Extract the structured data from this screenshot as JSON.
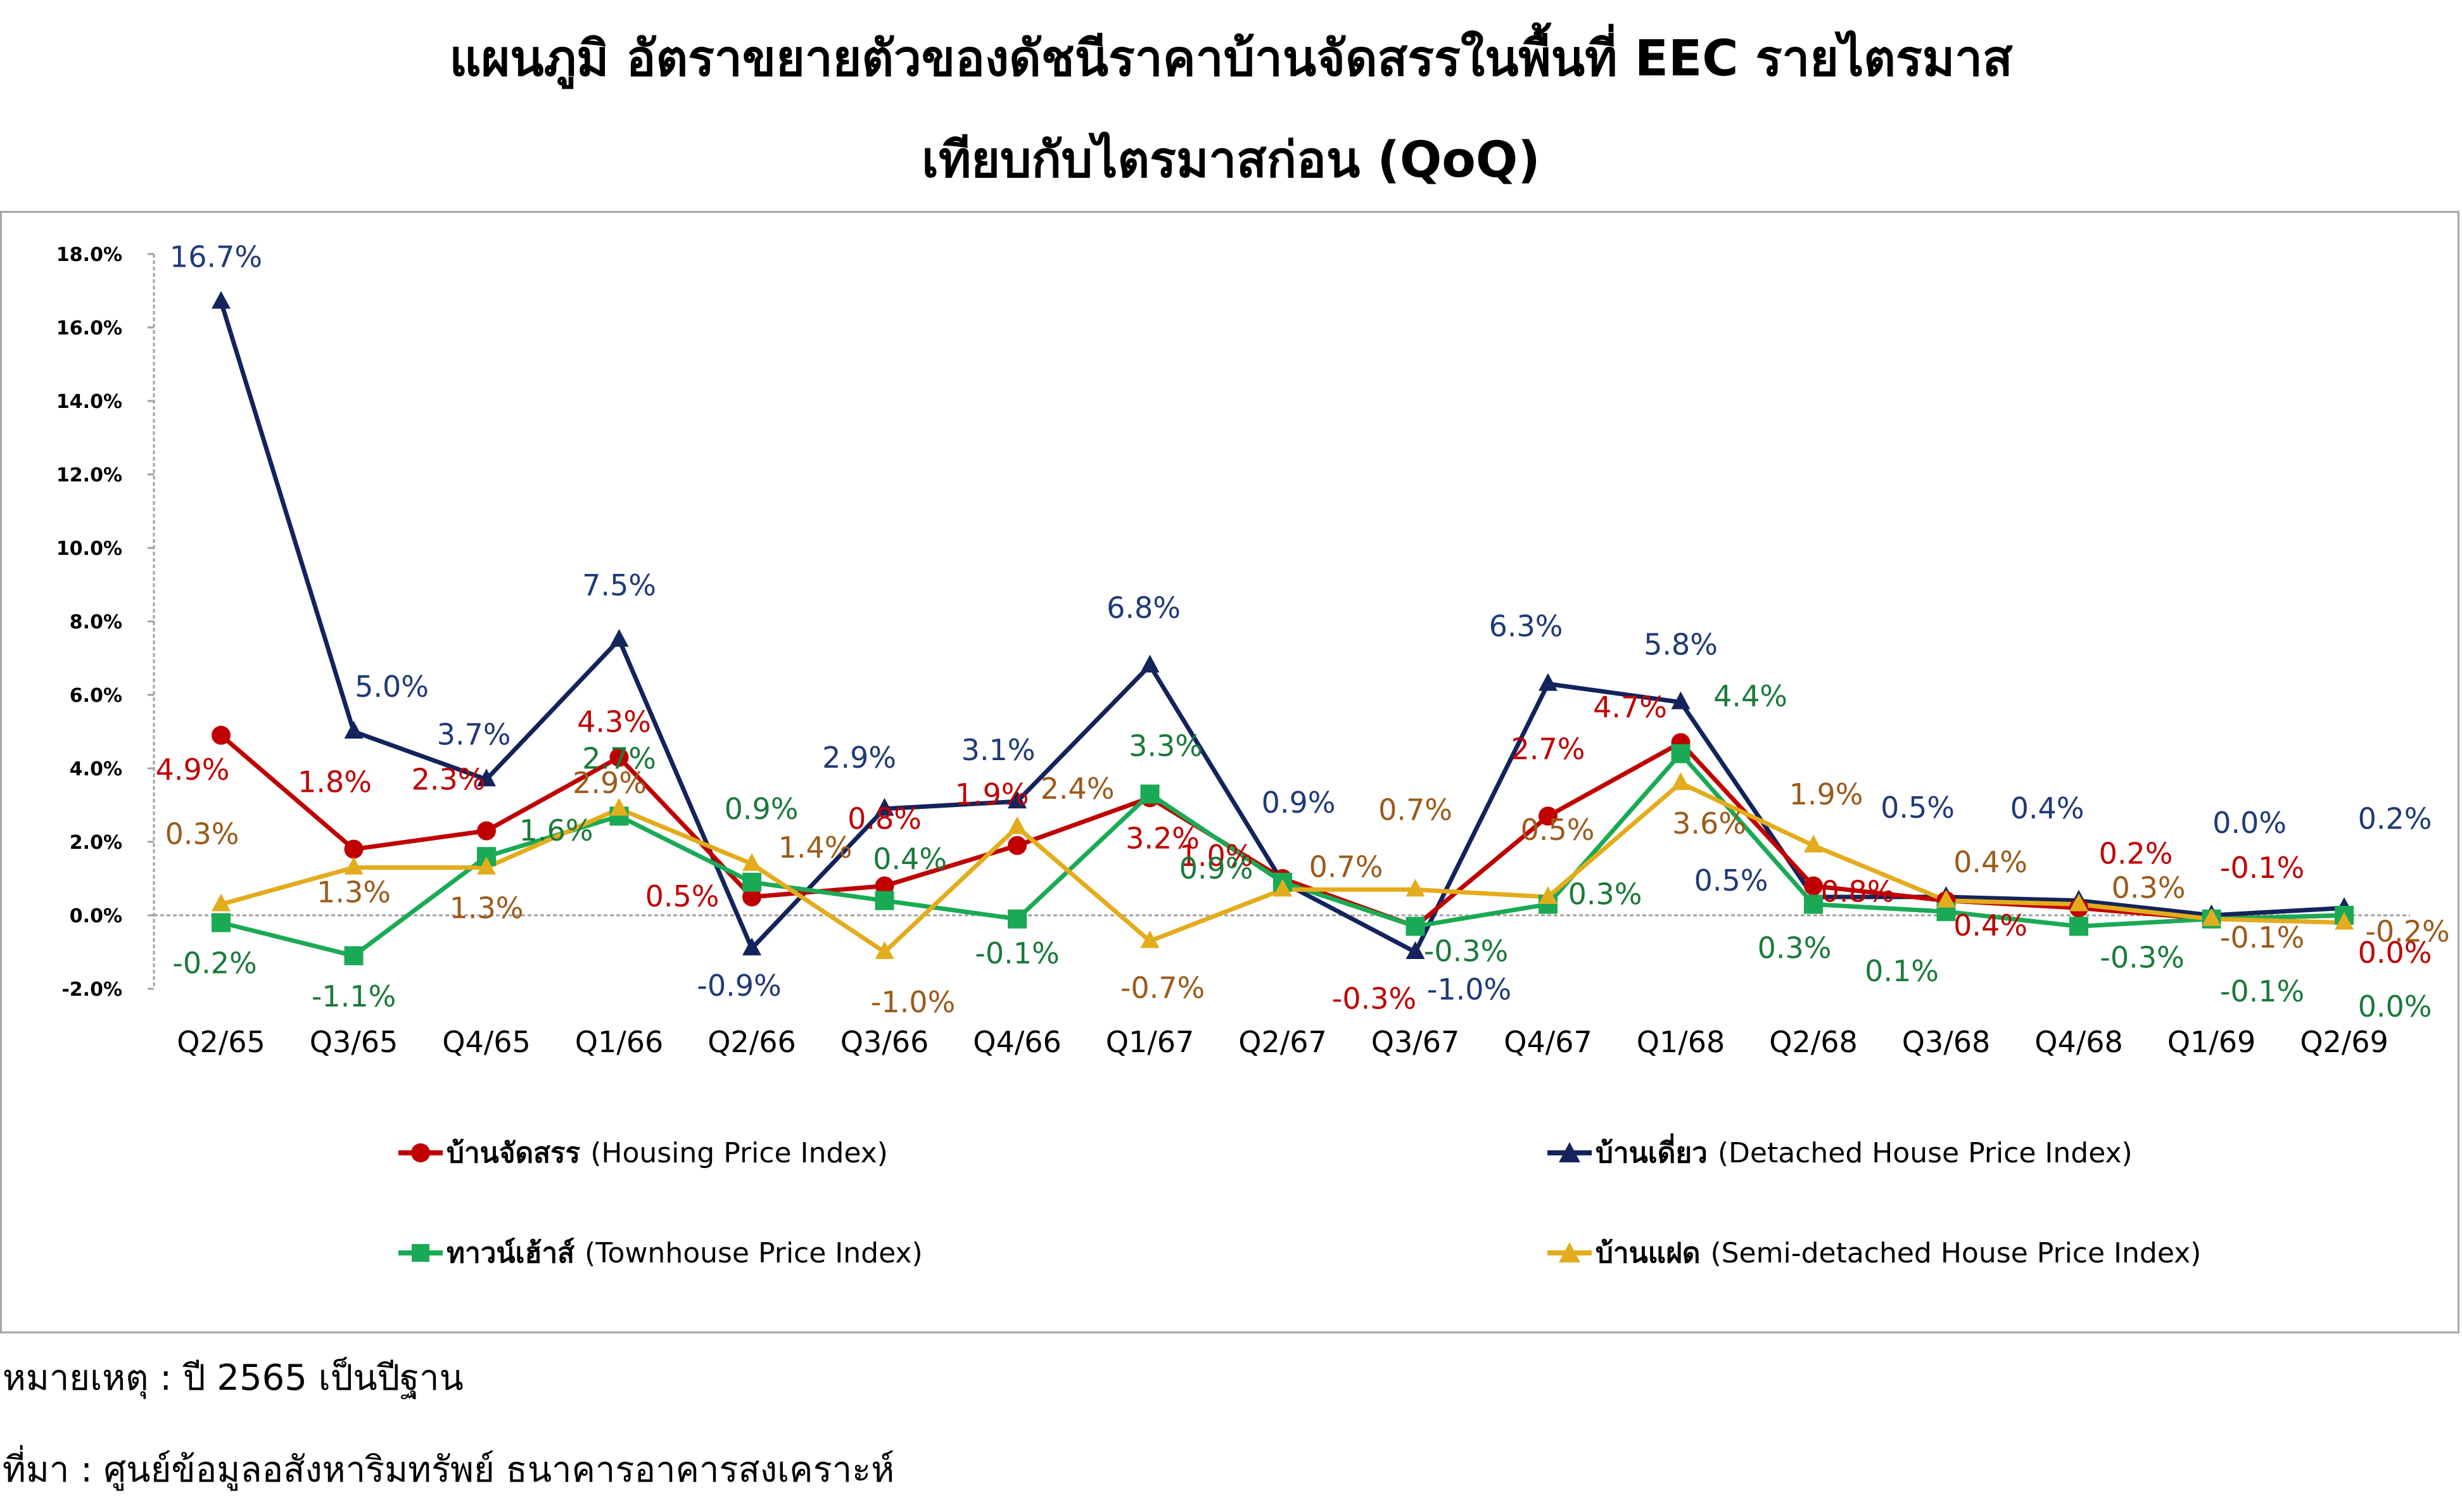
{
  "title": {
    "line1": "แผนภูมิ อัตราขยายตัวของดัชนีราคาบ้านจัดสรรในพื้นที่ EEC รายไตรมาส",
    "line2": "เทียบกับไตรมาสก่อน (QoQ)"
  },
  "notes": {
    "remark": "หมายเหตุ : ปี 2565 เป็นปีฐาน",
    "source": "ที่มา : ศูนย์ข้อมูลอสังหาริมทรัพย์ ธนาคารอาคารสงเคราะห์"
  },
  "chart_data": {
    "type": "line",
    "categories": [
      "Q2/65",
      "Q3/65",
      "Q4/65",
      "Q1/66",
      "Q2/66",
      "Q3/66",
      "Q4/66",
      "Q1/67",
      "Q2/67",
      "Q3/67",
      "Q4/67",
      "Q1/68",
      "Q2/68",
      "Q3/68",
      "Q4/68",
      "Q1/69",
      "Q2/69"
    ],
    "ylim": [
      -2.0,
      18.0
    ],
    "yticks": [
      -2.0,
      0.0,
      2.0,
      4.0,
      6.0,
      8.0,
      10.0,
      12.0,
      14.0,
      16.0,
      18.0
    ],
    "ytick_labels": [
      "-2.0%",
      "0.0%",
      "2.0%",
      "4.0%",
      "6.0%",
      "8.0%",
      "10.0%",
      "12.0%",
      "14.0%",
      "16.0%",
      "18.0%"
    ],
    "grid": false,
    "legend_position": "bottom",
    "series": [
      {
        "key": "housing",
        "name_th": "บ้านจัดสรร",
        "name_en": "(Housing Price Index)",
        "color": "#c00000",
        "label_color": "#c00000",
        "marker": "circle",
        "values": [
          4.9,
          1.8,
          2.3,
          4.3,
          0.5,
          0.8,
          1.9,
          3.2,
          1.0,
          -0.3,
          2.7,
          4.7,
          0.8,
          0.4,
          0.2,
          -0.1,
          0.0
        ],
        "labels": [
          "4.9%",
          "1.8%",
          "2.3%",
          "4.3%",
          "0.5%",
          "0.8%",
          "1.9%",
          "3.2%",
          "1.0%",
          "-0.3%",
          "2.7%",
          "4.7%",
          "0.8%",
          "0.4%",
          "0.2%",
          "-0.1%",
          "0.0%"
        ]
      },
      {
        "key": "detached",
        "name_th": "บ้านเดี่ยว",
        "name_en": "(Detached House Price Index)",
        "color": "#13235b",
        "label_color": "#1f3a78",
        "marker": "triangle",
        "values": [
          16.7,
          5.0,
          3.7,
          7.5,
          -0.9,
          2.9,
          3.1,
          6.8,
          0.9,
          -1.0,
          6.3,
          5.8,
          0.5,
          0.5,
          0.4,
          0.0,
          0.2
        ],
        "labels": [
          "16.7%",
          "5.0%",
          "3.7%",
          "7.5%",
          "-0.9%",
          "2.9%",
          "3.1%",
          "6.8%",
          "0.9%",
          "-1.0%",
          "6.3%",
          "5.8%",
          "0.5%",
          "0.5%",
          "0.4%",
          "0.0%",
          "0.2%"
        ]
      },
      {
        "key": "townhouse",
        "name_th": "ทาวน์เฮ้าส์",
        "name_en": "(Townhouse Price Index)",
        "color": "#1aaa55",
        "label_color": "#1a7a3a",
        "marker": "square",
        "values": [
          -0.2,
          -1.1,
          1.6,
          2.7,
          0.9,
          0.4,
          -0.1,
          3.3,
          0.9,
          -0.3,
          0.3,
          4.4,
          0.3,
          0.1,
          -0.3,
          -0.1,
          0.0
        ],
        "labels": [
          "-0.2%",
          "-1.1%",
          "1.6%",
          "2.7%",
          "0.9%",
          "0.4%",
          "-0.1%",
          "3.3%",
          "0.9%",
          "-0.3%",
          "0.3%",
          "4.4%",
          "0.3%",
          "0.1%",
          "-0.3%",
          "-0.1%",
          "0.0%"
        ]
      },
      {
        "key": "semidetached",
        "name_th": "บ้านแฝด",
        "name_en": "(Semi-detached House Price Index)",
        "color": "#e3ac1c",
        "label_color": "#9c5a1a",
        "marker": "triangle",
        "values": [
          0.3,
          1.3,
          1.3,
          2.9,
          1.4,
          -1.0,
          2.4,
          -0.7,
          0.7,
          0.7,
          0.5,
          3.6,
          1.9,
          0.4,
          0.3,
          -0.1,
          -0.2
        ],
        "labels": [
          "0.3%",
          "1.3%",
          "1.3%",
          "2.9%",
          "1.4%",
          "-1.0%",
          "2.4%",
          "-0.7%",
          "0.7%",
          "0.7%",
          "0.5%",
          "3.6%",
          "1.9%",
          "0.4%",
          "0.3%",
          "-0.1%",
          "-0.2%"
        ]
      }
    ]
  }
}
